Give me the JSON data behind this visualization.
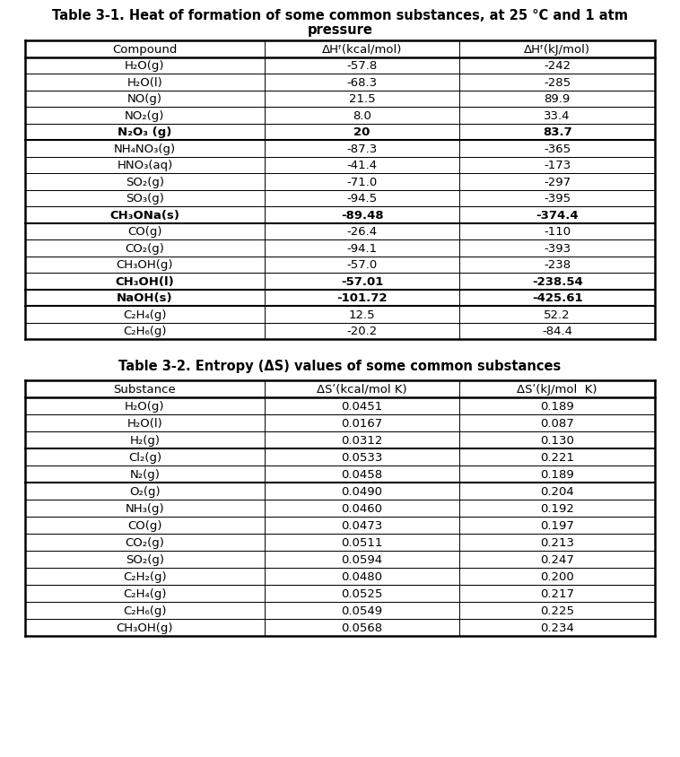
{
  "table1_title_line1": "Table 3-1. Heat of formation of some common substances, at 25 °C and 1 atm",
  "table1_title_line2": "pressure",
  "table1_col0": [
    "H₂O(g)",
    "H₂O(l)",
    "NO(g)",
    "NO₂(g)",
    "N₂O₃ (g)",
    "NH₄NO₃(g)",
    "HNO₃(aq)",
    "SO₂(g)",
    "SO₃(g)",
    "CH₃ONa(s)",
    "CO(g)",
    "CO₂(g)",
    "CH₃OH(g)",
    "CH₃OH(l)",
    "NaOH(s)",
    "C₂H₄(g)",
    "C₂H₆(g)"
  ],
  "table1_col1": [
    "-57.8",
    "-68.3",
    "21.5",
    "8.0",
    "20",
    "-87.3",
    "-41.4",
    "-71.0",
    "-94.5",
    "-89.48",
    "-26.4",
    "-94.1",
    "-57.0",
    "-57.01",
    "-101.72",
    "12.5",
    "-20.2"
  ],
  "table1_col2": [
    "-242",
    "-285",
    "89.9",
    "33.4",
    "83.7",
    "-365",
    "-173",
    "-297",
    "-395",
    "-374.4",
    "-110",
    "-393",
    "-238",
    "-238.54",
    "-425.61",
    "52.2",
    "-84.4"
  ],
  "table1_bold_rows": [
    4,
    9,
    13,
    14
  ],
  "table1_thick_after_rows": [
    0,
    1,
    2,
    3,
    4,
    7,
    8,
    9,
    11,
    12,
    13,
    14,
    16
  ],
  "table2_title": "Table 3-2. Entropy (ΔS) values of some common substances",
  "table2_col0": [
    "H₂O(g)",
    "H₂O(l)",
    "H₂(g)",
    "Cl₂(g)",
    "N₂(g)",
    "O₂(g)",
    "NH₃(g)",
    "CO(g)",
    "CO₂(g)",
    "SO₂(g)",
    "C₂H₂(g)",
    "C₂H₄(g)",
    "C₂H₆(g)",
    "CH₃OH(g)"
  ],
  "table2_col1": [
    "0.0451",
    "0.0167",
    "0.0312",
    "0.0533",
    "0.0458",
    "0.0490",
    "0.0460",
    "0.0473",
    "0.0511",
    "0.0594",
    "0.0480",
    "0.0525",
    "0.0549",
    "0.0568"
  ],
  "table2_col2": [
    "0.189",
    "0.087",
    "0.130",
    "0.221",
    "0.189",
    "0.204",
    "0.192",
    "0.197",
    "0.213",
    "0.247",
    "0.200",
    "0.217",
    "0.225",
    "0.234"
  ],
  "table2_thick_after_rows": [
    0,
    1,
    2,
    3,
    4,
    5,
    6,
    7,
    8,
    9,
    10,
    11,
    12,
    13
  ],
  "bg_color": "#ffffff",
  "title_fontsize": 10.5,
  "header_fontsize": 9.5,
  "cell_fontsize": 9.5
}
